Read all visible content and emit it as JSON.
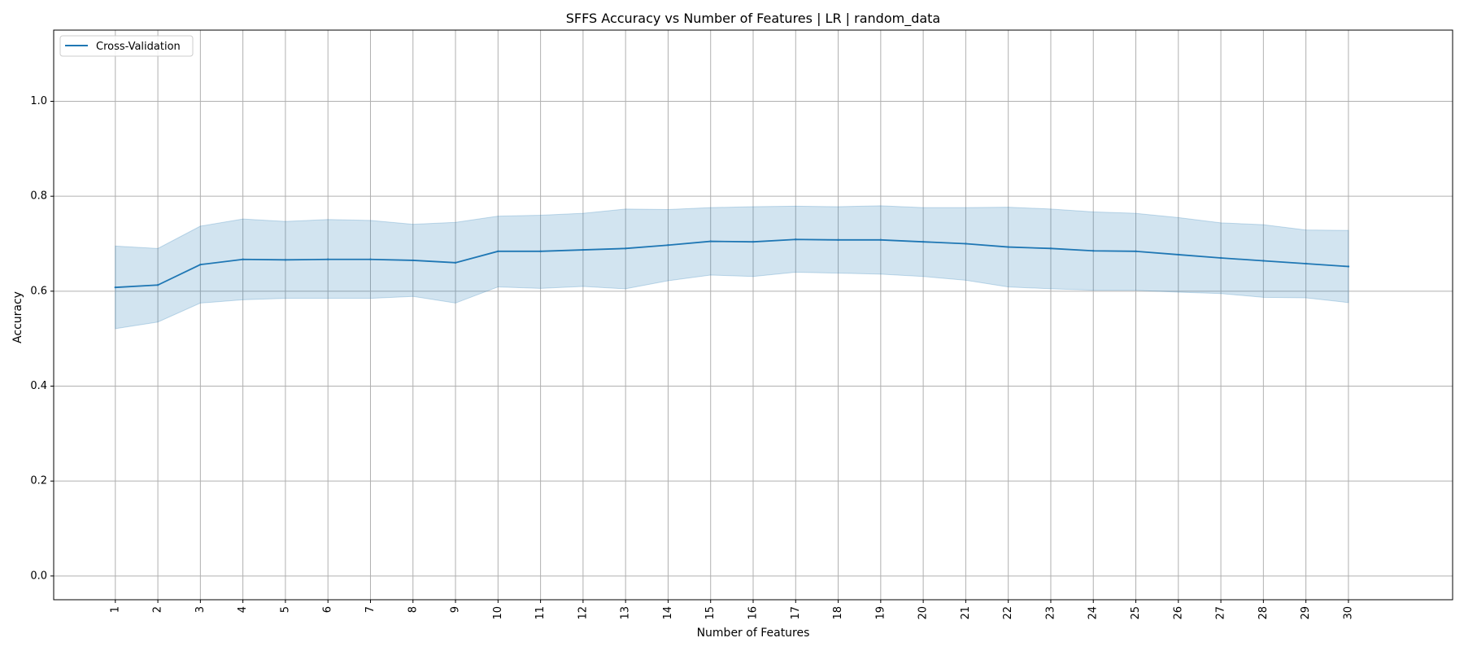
{
  "chart_data": {
    "type": "line",
    "title": "SFFS Accuracy vs Number of Features | LR | random_data",
    "xlabel": "Number of Features",
    "ylabel": "Accuracy",
    "x": [
      1,
      2,
      3,
      4,
      5,
      6,
      7,
      8,
      9,
      10,
      11,
      12,
      13,
      14,
      15,
      16,
      17,
      18,
      19,
      20,
      21,
      22,
      23,
      24,
      25,
      26,
      27,
      28,
      29,
      30
    ],
    "xtick_labels": [
      "1",
      "2",
      "3",
      "4",
      "5",
      "6",
      "7",
      "8",
      "9",
      "10",
      "11",
      "12",
      "13",
      "14",
      "15",
      "16",
      "17",
      "18",
      "19",
      "20",
      "21",
      "22",
      "23",
      "24",
      "25",
      "26",
      "27",
      "28",
      "29",
      "30"
    ],
    "xlim": [
      -0.45,
      32.45
    ],
    "ylim": [
      -0.05,
      1.15
    ],
    "yticks": [
      0.0,
      0.2,
      0.4,
      0.6,
      0.8,
      1.0
    ],
    "ytick_labels": [
      "0.0",
      "0.2",
      "0.4",
      "0.6",
      "0.8",
      "1.0"
    ],
    "grid": true,
    "legend_position": "top-left",
    "series": [
      {
        "name": "Cross-Validation",
        "color": "#1f77b4",
        "band_color": "#1f77b4",
        "values": [
          0.608,
          0.613,
          0.656,
          0.667,
          0.666,
          0.667,
          0.667,
          0.665,
          0.66,
          0.684,
          0.684,
          0.687,
          0.69,
          0.697,
          0.705,
          0.704,
          0.709,
          0.708,
          0.708,
          0.704,
          0.7,
          0.693,
          0.69,
          0.685,
          0.684,
          0.677,
          0.67,
          0.664,
          0.658,
          0.652
        ],
        "upper": [
          0.695,
          0.69,
          0.737,
          0.752,
          0.747,
          0.751,
          0.749,
          0.741,
          0.745,
          0.758,
          0.76,
          0.764,
          0.773,
          0.772,
          0.776,
          0.778,
          0.779,
          0.778,
          0.78,
          0.776,
          0.776,
          0.777,
          0.773,
          0.767,
          0.764,
          0.755,
          0.744,
          0.74,
          0.729,
          0.728
        ],
        "lower": [
          0.521,
          0.535,
          0.575,
          0.582,
          0.585,
          0.585,
          0.585,
          0.589,
          0.575,
          0.609,
          0.606,
          0.61,
          0.605,
          0.622,
          0.634,
          0.631,
          0.64,
          0.638,
          0.636,
          0.631,
          0.623,
          0.609,
          0.605,
          0.602,
          0.602,
          0.598,
          0.595,
          0.587,
          0.586,
          0.576
        ]
      }
    ]
  }
}
